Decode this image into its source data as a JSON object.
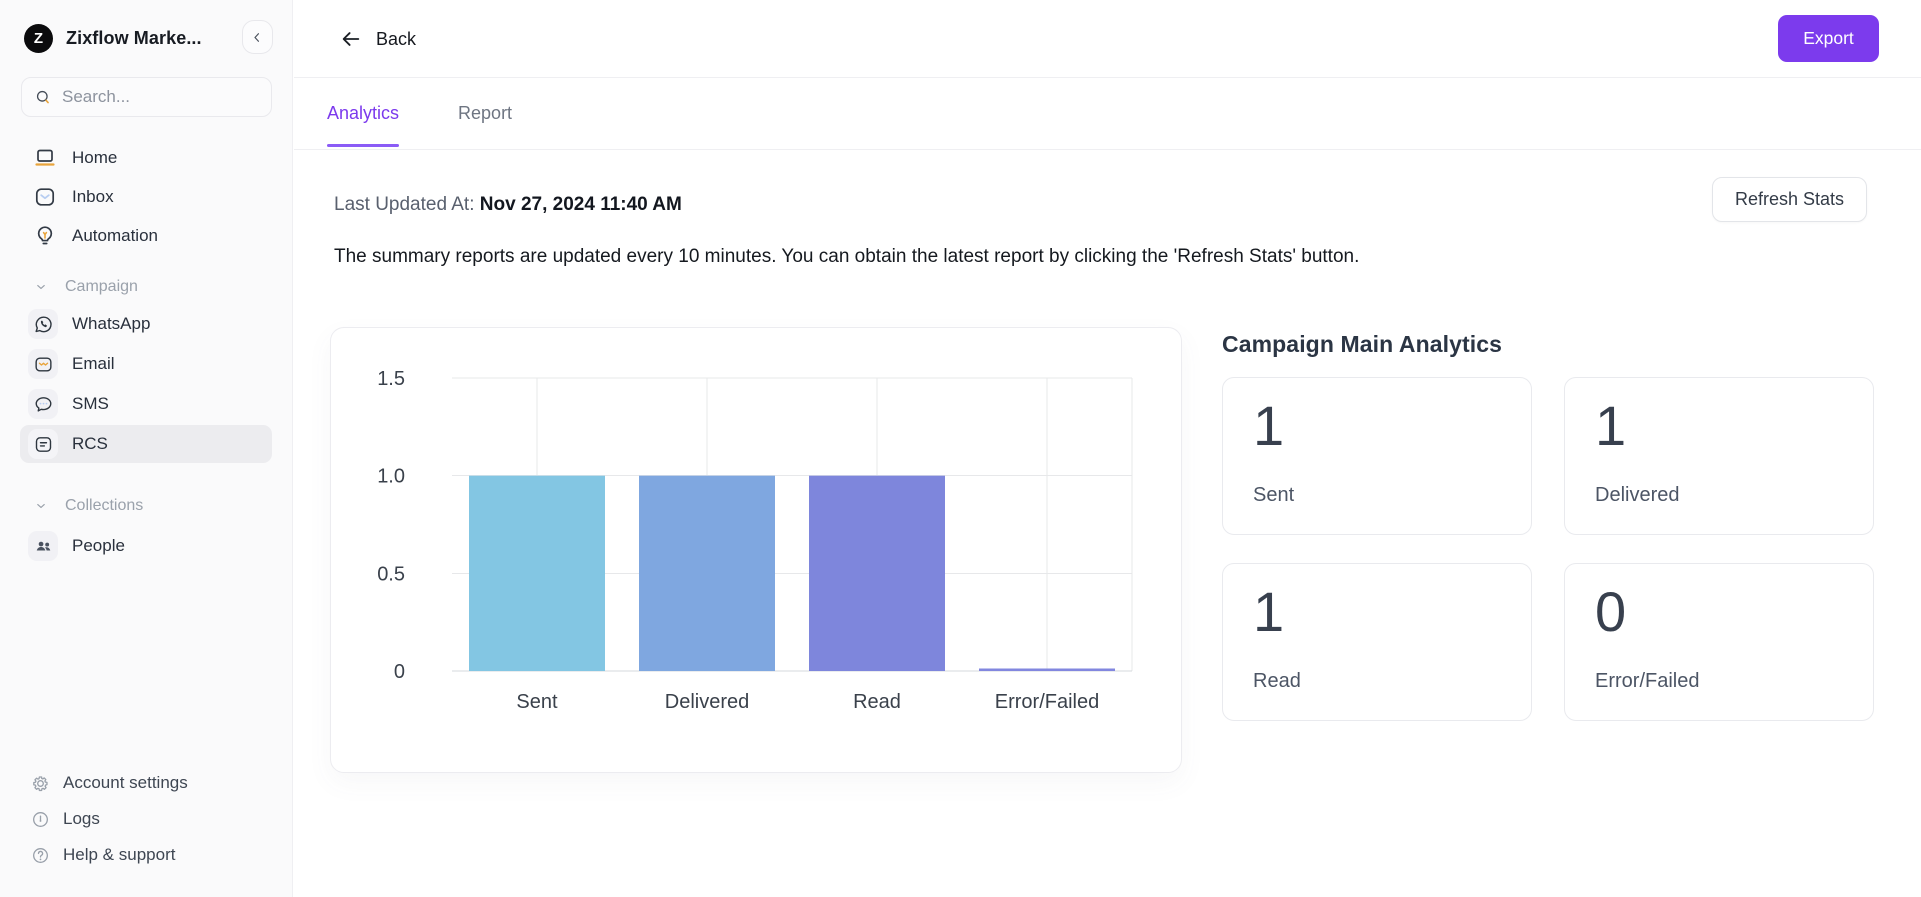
{
  "colors": {
    "accent": "#7C3BED",
    "tab_underline": "#8B5CF6",
    "selected_nav_bg": "#ECECEF"
  },
  "workspace": {
    "name": "Zixflow Marke...",
    "logo_letter": "Z"
  },
  "header": {
    "back_label": "Back",
    "export_label": "Export"
  },
  "sidebar": {
    "search_placeholder": "Search...",
    "primary": [
      {
        "label": "Home",
        "icon": "home-icon"
      },
      {
        "label": "Inbox",
        "icon": "inbox-icon"
      },
      {
        "label": "Automation",
        "icon": "automation-icon"
      }
    ],
    "sections": [
      {
        "label": "Campaign",
        "items": [
          {
            "label": "WhatsApp",
            "icon": "whatsapp-icon",
            "selected": false
          },
          {
            "label": "Email",
            "icon": "email-icon",
            "selected": false
          },
          {
            "label": "SMS",
            "icon": "sms-icon",
            "selected": false
          },
          {
            "label": "RCS",
            "icon": "rcs-icon",
            "selected": true
          }
        ]
      },
      {
        "label": "Collections",
        "items": [
          {
            "label": "People",
            "icon": "people-icon",
            "selected": false
          }
        ]
      }
    ],
    "footer": [
      {
        "label": "Account settings",
        "icon": "gear-icon"
      },
      {
        "label": "Logs",
        "icon": "logs-icon"
      },
      {
        "label": "Help & support",
        "icon": "help-icon"
      }
    ]
  },
  "tabs": [
    {
      "label": "Analytics",
      "active": true
    },
    {
      "label": "Report",
      "active": false
    }
  ],
  "meta": {
    "last_updated_label": "Last Updated At:",
    "last_updated_value": "Nov 27, 2024 11:40 AM",
    "refresh_button_label": "Refresh Stats",
    "info_text": "The summary reports are updated every 10 minutes. You can obtain the latest report by clicking the 'Refresh Stats' button."
  },
  "analytics": {
    "title": "Campaign Main Analytics",
    "cards": [
      {
        "value": "1",
        "label": "Sent"
      },
      {
        "value": "1",
        "label": "Delivered"
      },
      {
        "value": "1",
        "label": "Read"
      },
      {
        "value": "0",
        "label": "Error/Failed"
      }
    ]
  },
  "chart_data": {
    "type": "bar",
    "title": "",
    "xlabel": "",
    "ylabel": "",
    "categories": [
      "Sent",
      "Delivered",
      "Read",
      "Error/Failed"
    ],
    "values": [
      1,
      1,
      1,
      0
    ],
    "bar_colors": [
      "#83C6E3",
      "#7FA7E0",
      "#7E86DC",
      "#8287DF"
    ],
    "ylim": [
      0,
      1.5
    ],
    "yticks": [
      0,
      0.5,
      1,
      1.5
    ],
    "ytick_labels": [
      "0",
      "0.5",
      "1.0",
      "1.5"
    ],
    "grid": true,
    "legend": false
  }
}
